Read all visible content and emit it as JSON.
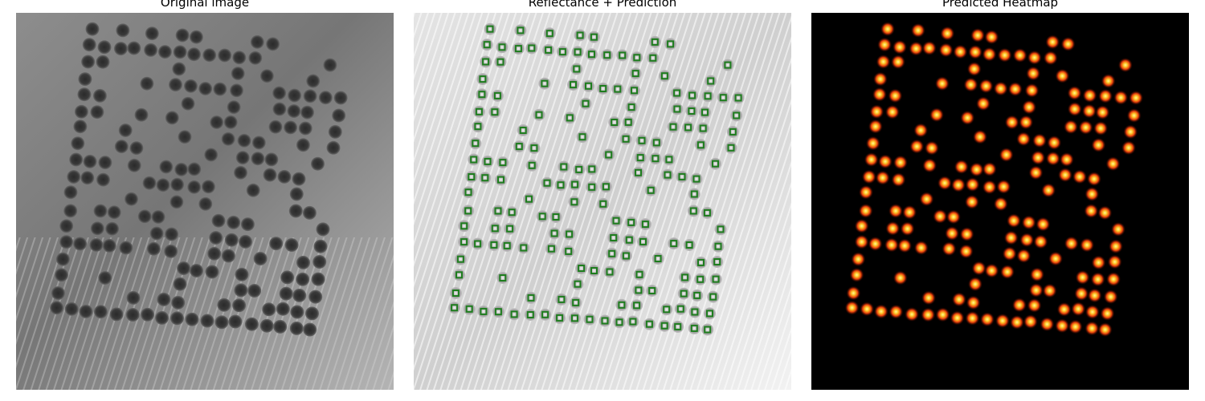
{
  "panels": [
    {
      "title": "Original image"
    },
    {
      "title": "Reflectance + Prediction"
    },
    {
      "title": "Predicted Heatmap"
    }
  ],
  "colors": {
    "marker": "#1e7d1e",
    "heatmap_background": "#000000",
    "heatmap_hot": "#ffd23c"
  }
}
